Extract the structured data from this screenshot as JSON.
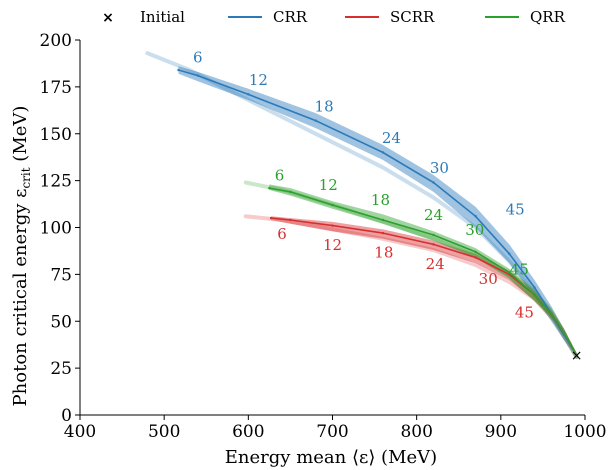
{
  "chart_data": {
    "type": "line",
    "title": "",
    "xlabel": "Energy mean ⟨ε⟩ (MeV)",
    "ylabel": "Photon critical energy ε",
    "ylabel_sub": "crit",
    "ylabel_unit": " (MeV)",
    "xlim": [
      400,
      1000
    ],
    "ylim": [
      0,
      200
    ],
    "xticks": [
      400,
      500,
      600,
      700,
      800,
      900,
      1000
    ],
    "yticks": [
      0,
      25,
      50,
      75,
      100,
      125,
      150,
      175,
      200
    ],
    "grid": false,
    "legend": {
      "placement": "top",
      "entries": [
        {
          "name": "Initial",
          "marker": "×",
          "color": "#000000"
        },
        {
          "name": "CRR",
          "color": "#2b7bba"
        },
        {
          "name": "SCRR",
          "color": "#d62f30"
        },
        {
          "name": "QRR",
          "color": "#2ca02c"
        }
      ]
    },
    "initial_point": {
      "x": 990,
      "y": 32
    },
    "series": [
      {
        "name": "CRR",
        "color": "#2b7bba",
        "x": [
          517,
          540,
          600,
          680,
          760,
          820,
          870,
          910,
          940,
          960,
          975,
          990
        ],
        "y": [
          184,
          181,
          171,
          157,
          140,
          124,
          106,
          86,
          68,
          54,
          43,
          32
        ],
        "band_lower": [
          182,
          178,
          168,
          153,
          136,
          119,
          100,
          81,
          63,
          50,
          40,
          31
        ],
        "band_upper": [
          186,
          183,
          174,
          161,
          144,
          128,
          111,
          91,
          72,
          58,
          46,
          33
        ],
        "ghost_x": [
          480,
          530,
          600,
          680,
          760,
          820,
          870,
          910,
          950,
          990
        ],
        "ghost_y": [
          193,
          184,
          168,
          150,
          132,
          116,
          100,
          82,
          60,
          31
        ],
        "labels": [
          {
            "text": "6",
            "x": 540,
            "y": 188
          },
          {
            "text": "12",
            "x": 612,
            "y": 176
          },
          {
            "text": "18",
            "x": 690,
            "y": 162
          },
          {
            "text": "24",
            "x": 770,
            "y": 145
          },
          {
            "text": "30",
            "x": 827,
            "y": 129
          },
          {
            "text": "45",
            "x": 917,
            "y": 107
          }
        ]
      },
      {
        "name": "SCRR",
        "color": "#d62f30",
        "x": [
          627,
          650,
          700,
          760,
          820,
          870,
          910,
          940,
          960,
          975,
          990
        ],
        "y": [
          105,
          104,
          101,
          97,
          91,
          84,
          75,
          64,
          54,
          44,
          32
        ],
        "band_lower": [
          104,
          102,
          98,
          94,
          88,
          81,
          72,
          61,
          52,
          42,
          31
        ],
        "band_upper": [
          106,
          105,
          103,
          99,
          93,
          86,
          77,
          66,
          56,
          46,
          33
        ],
        "ghost_x": [
          597,
          640,
          700,
          760,
          820,
          870,
          910,
          940,
          965,
          990
        ],
        "ghost_y": [
          106,
          104,
          99,
          94,
          88,
          80,
          71,
          62,
          50,
          31
        ],
        "labels": [
          {
            "text": "6",
            "x": 640,
            "y": 94
          },
          {
            "text": "12",
            "x": 700,
            "y": 88
          },
          {
            "text": "18",
            "x": 761,
            "y": 84
          },
          {
            "text": "24",
            "x": 822,
            "y": 78
          },
          {
            "text": "30",
            "x": 885,
            "y": 70
          },
          {
            "text": "45",
            "x": 928,
            "y": 52
          }
        ]
      },
      {
        "name": "QRR",
        "color": "#2ca02c",
        "x": [
          625,
          650,
          700,
          760,
          820,
          870,
          910,
          940,
          960,
          975,
          990
        ],
        "y": [
          121,
          119,
          112,
          104,
          96,
          87,
          76,
          64,
          54,
          44,
          32
        ],
        "band_lower": [
          120,
          117,
          110,
          102,
          93,
          84,
          73,
          61,
          52,
          42,
          31
        ],
        "band_upper": [
          123,
          121,
          114,
          107,
          98,
          89,
          78,
          67,
          57,
          46,
          33
        ],
        "ghost_x": [
          597,
          640,
          700,
          760,
          820,
          870,
          910,
          940,
          965,
          990
        ],
        "ghost_y": [
          124,
          120,
          112,
          103,
          94,
          85,
          74,
          62,
          50,
          31
        ],
        "labels": [
          {
            "text": "6",
            "x": 637,
            "y": 125
          },
          {
            "text": "12",
            "x": 695,
            "y": 120
          },
          {
            "text": "18",
            "x": 757,
            "y": 112
          },
          {
            "text": "24",
            "x": 820,
            "y": 104
          },
          {
            "text": "30",
            "x": 869,
            "y": 96
          },
          {
            "text": "45",
            "x": 922,
            "y": 75
          }
        ]
      }
    ]
  }
}
